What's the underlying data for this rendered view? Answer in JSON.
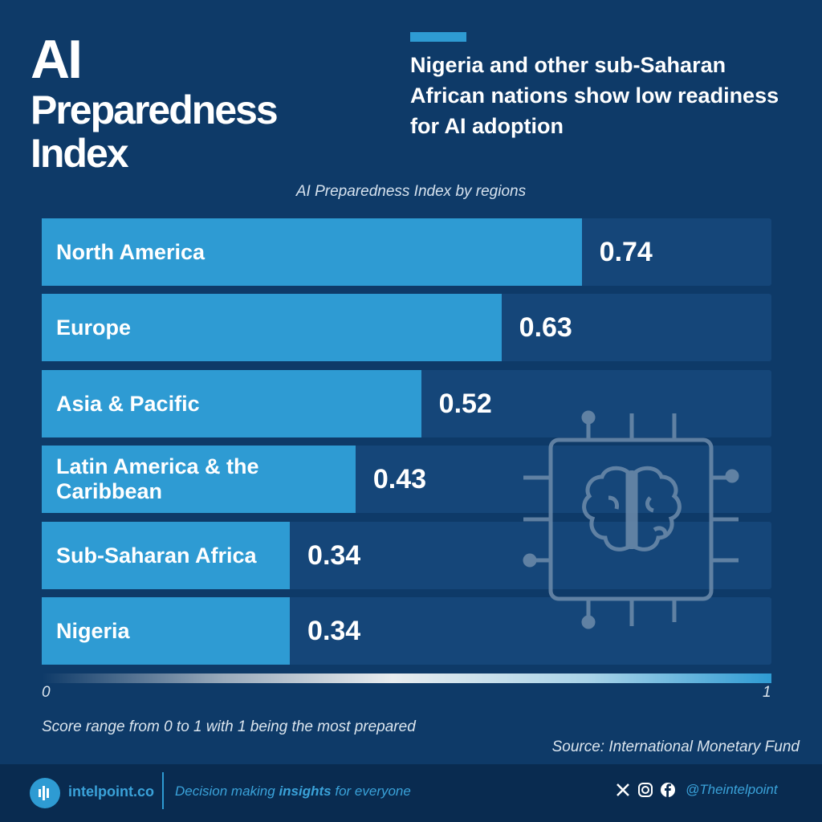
{
  "header": {
    "title_line1": "AI",
    "title_line2": "Preparedness",
    "title_line3": "Index",
    "subtitle": "Nigeria and other sub-Saharan African nations show low readiness for AI adoption"
  },
  "chart_data": {
    "type": "bar",
    "orientation": "horizontal",
    "title": "AI Preparedness Index by regions",
    "categories": [
      "North America",
      "Europe",
      "Asia & Pacific",
      "Latin America & the Caribbean",
      "Sub-Saharan Africa",
      "Nigeria"
    ],
    "values": [
      0.74,
      0.63,
      0.52,
      0.43,
      0.34,
      0.34
    ],
    "value_labels": [
      "0.74",
      "0.63",
      "0.52",
      "0.43",
      "0.34",
      "0.34"
    ],
    "xlim": [
      0,
      1
    ],
    "scale_min_label": "0",
    "scale_max_label": "1",
    "grid": false,
    "bar_color": "#2e9bd3",
    "track_color": "#154679"
  },
  "notes": {
    "range": "Score range from 0 to 1 with 1 being the most prepared",
    "source": "Source: International Monetary Fund"
  },
  "footer": {
    "brand": "intelpoint.co",
    "tagline_pre": "Decision making ",
    "tagline_bold": "insights",
    "tagline_post": " for everyone",
    "handle": "@Theintelpoint",
    "icons": [
      "x-icon",
      "instagram-icon",
      "facebook-icon"
    ]
  },
  "colors": {
    "background": "#0e3a68",
    "footer": "#092b50",
    "accent": "#2e9bd3"
  }
}
